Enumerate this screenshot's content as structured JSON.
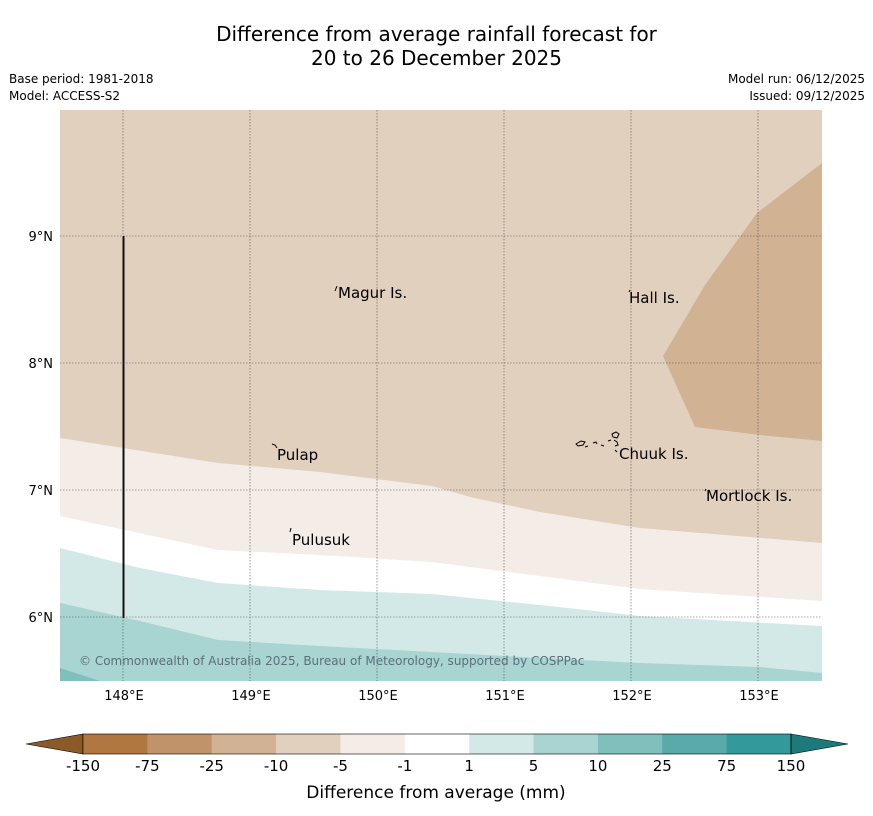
{
  "title": {
    "line1": "Difference from average rainfall forecast for",
    "line2": "20 to 26 December 2025"
  },
  "meta": {
    "base_period": "Base period: 1981-2018",
    "model": "Model: ACCESS-S2",
    "model_run": "Model run: 06/12/2025",
    "issued": "Issued: 09/12/2025"
  },
  "map": {
    "lon_labels": [
      "148°E",
      "149°E",
      "150°E",
      "151°E",
      "152°E",
      "153°E"
    ],
    "lat_labels": [
      "9°N",
      "8°N",
      "7°N",
      "6°N"
    ],
    "places": [
      "Magur Is.",
      "Hall Is.",
      "Pulap",
      "Chuuk Is.",
      "Mortlock Is.",
      "Pulusuk"
    ],
    "copyright": "© Commonwealth of Australia 2025, Bureau of Meteorology, supported by COSPPac"
  },
  "legend": {
    "ticks": [
      "-150",
      "-75",
      "-25",
      "-10",
      "-5",
      "-1",
      "1",
      "5",
      "10",
      "25",
      "75",
      "150"
    ],
    "label": "Difference from average (mm)",
    "colors": [
      "#8c5a26",
      "#b07840",
      "#c1936a",
      "#d1b293",
      "#e2d0bf",
      "#f3ece7",
      "#ffffff",
      "#d3e9e8",
      "#a8d4d2",
      "#7fbfbc",
      "#58aba8",
      "#33999a",
      "#1e7a7a"
    ]
  },
  "colors": {
    "dry_light": "#e2d0bf",
    "dry_med": "#d1b293",
    "dry_faint": "#f3ece7",
    "wet_faint": "#d3e9e8",
    "wet_light": "#a8d4d2",
    "wet_med": "#7fbfbc"
  }
}
